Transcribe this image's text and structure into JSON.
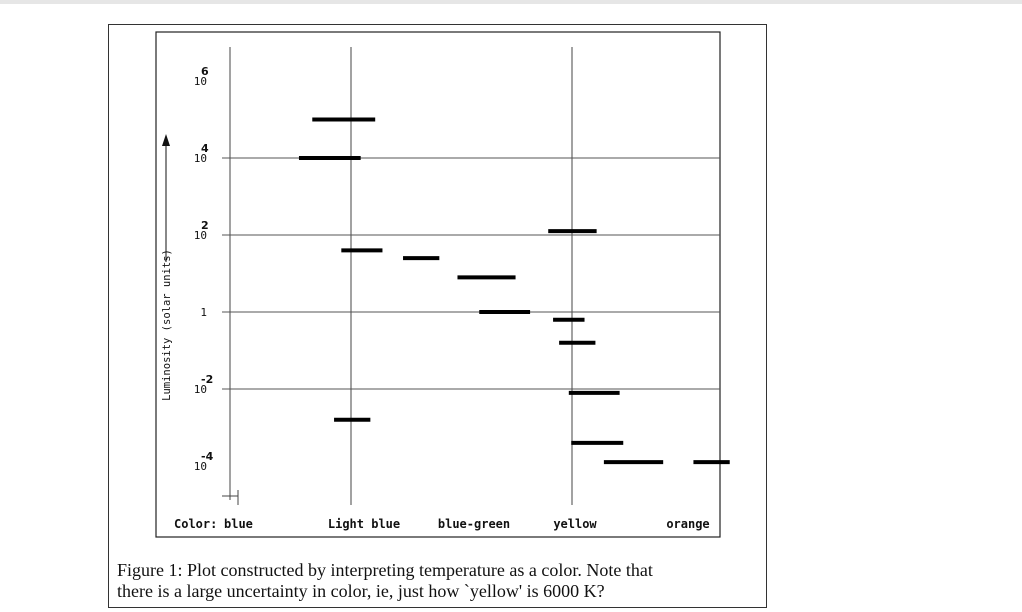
{
  "chart_data": {
    "type": "scatter",
    "ylabel": "Luminosity (solar units)",
    "color_label": "Color:",
    "categories": [
      "blue",
      "Light blue",
      "blue-green",
      "yellow",
      "orange"
    ],
    "y_ticks": [
      {
        "base": "10",
        "exp": "6"
      },
      {
        "base": "10",
        "exp": "4"
      },
      {
        "base": "10",
        "exp": "2"
      },
      {
        "base": "1",
        "exp": ""
      },
      {
        "base": "10",
        "exp": "-2"
      },
      {
        "base": "10",
        "exp": "-4"
      }
    ],
    "y_scale": "log",
    "ylim_exponent": [
      -5.1,
      6.4
    ],
    "grid": true,
    "stars": [
      {
        "color_start": 0.68,
        "color_end": 1.2,
        "log_luminosity": 5.0
      },
      {
        "color_start": 0.57,
        "color_end": 1.08,
        "log_luminosity": 4.0
      },
      {
        "color_start": 0.92,
        "color_end": 1.26,
        "log_luminosity": 1.6
      },
      {
        "color_start": 1.43,
        "color_end": 1.73,
        "log_luminosity": 1.4
      },
      {
        "color_start": 1.88,
        "color_end": 2.36,
        "log_luminosity": 0.9
      },
      {
        "color_start": 2.06,
        "color_end": 2.48,
        "log_luminosity": 0.0
      },
      {
        "color_start": 2.63,
        "color_end": 3.03,
        "log_luminosity": 2.1
      },
      {
        "color_start": 2.67,
        "color_end": 2.93,
        "log_luminosity": -0.2
      },
      {
        "color_start": 2.72,
        "color_end": 3.02,
        "log_luminosity": -0.8
      },
      {
        "color_start": 2.8,
        "color_end": 3.22,
        "log_luminosity": -2.1
      },
      {
        "color_start": 0.86,
        "color_end": 1.16,
        "log_luminosity": -2.8
      },
      {
        "color_start": 2.82,
        "color_end": 3.25,
        "log_luminosity": -3.4
      },
      {
        "color_start": 3.09,
        "color_end": 3.58,
        "log_luminosity": -3.9
      },
      {
        "color_start": 3.83,
        "color_end": 4.13,
        "log_luminosity": -3.9
      }
    ]
  },
  "caption": {
    "line1": "Figure 1:  Plot constructed by interpreting temperature as a color.  Note that",
    "line2": "there is a large uncertainty in color, ie, just how `yellow' is 6000 K?"
  }
}
